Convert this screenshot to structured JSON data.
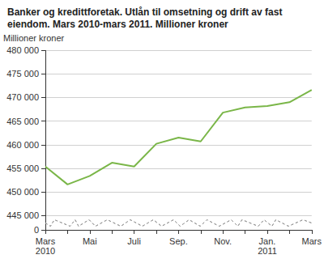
{
  "chart_data": {
    "type": "line",
    "title": "Banker og kredittforetak. Utlån til omsetning og drift av fast eiendom. Mars 2010-mars 2011. Millioner kroner",
    "y_label": "Millioner kroner",
    "categories": [
      "Mars\n2010",
      null,
      "Mai",
      null,
      "Juli",
      null,
      "Sep.",
      null,
      "Nov.",
      null,
      "Jan.\n2011",
      null,
      "Mars"
    ],
    "values": [
      455400,
      451600,
      453400,
      456200,
      455400,
      460200,
      461500,
      460700,
      466800,
      467900,
      468200,
      469000,
      471600
    ],
    "color": "#7ab648",
    "ylim": [
      0,
      480000
    ],
    "yticks": [
      0,
      {
        "value": 445000,
        "label": "445 000"
      },
      {
        "value": 450000,
        "label": "450 000"
      },
      {
        "value": 455000,
        "label": "455 000"
      },
      {
        "value": 460000,
        "label": "460 000"
      },
      {
        "value": 465000,
        "label": "465 000"
      },
      {
        "value": 470000,
        "label": "470 000"
      },
      {
        "value": 475000,
        "label": "475 000"
      },
      {
        "value": 480000,
        "label": "480 000"
      }
    ],
    "grid": true
  }
}
